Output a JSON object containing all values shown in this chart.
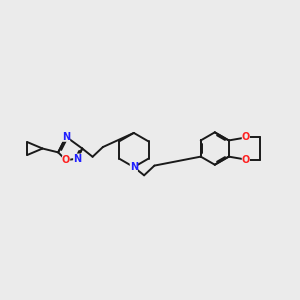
{
  "bg_color": "#ebebeb",
  "bond_color": "#1a1a1a",
  "N_color": "#2020ff",
  "O_color": "#ff2020",
  "line_width": 1.4,
  "figsize": [
    3.0,
    3.0
  ],
  "dpi": 100,
  "xlim": [
    0,
    10
  ],
  "ylim": [
    2,
    8
  ]
}
